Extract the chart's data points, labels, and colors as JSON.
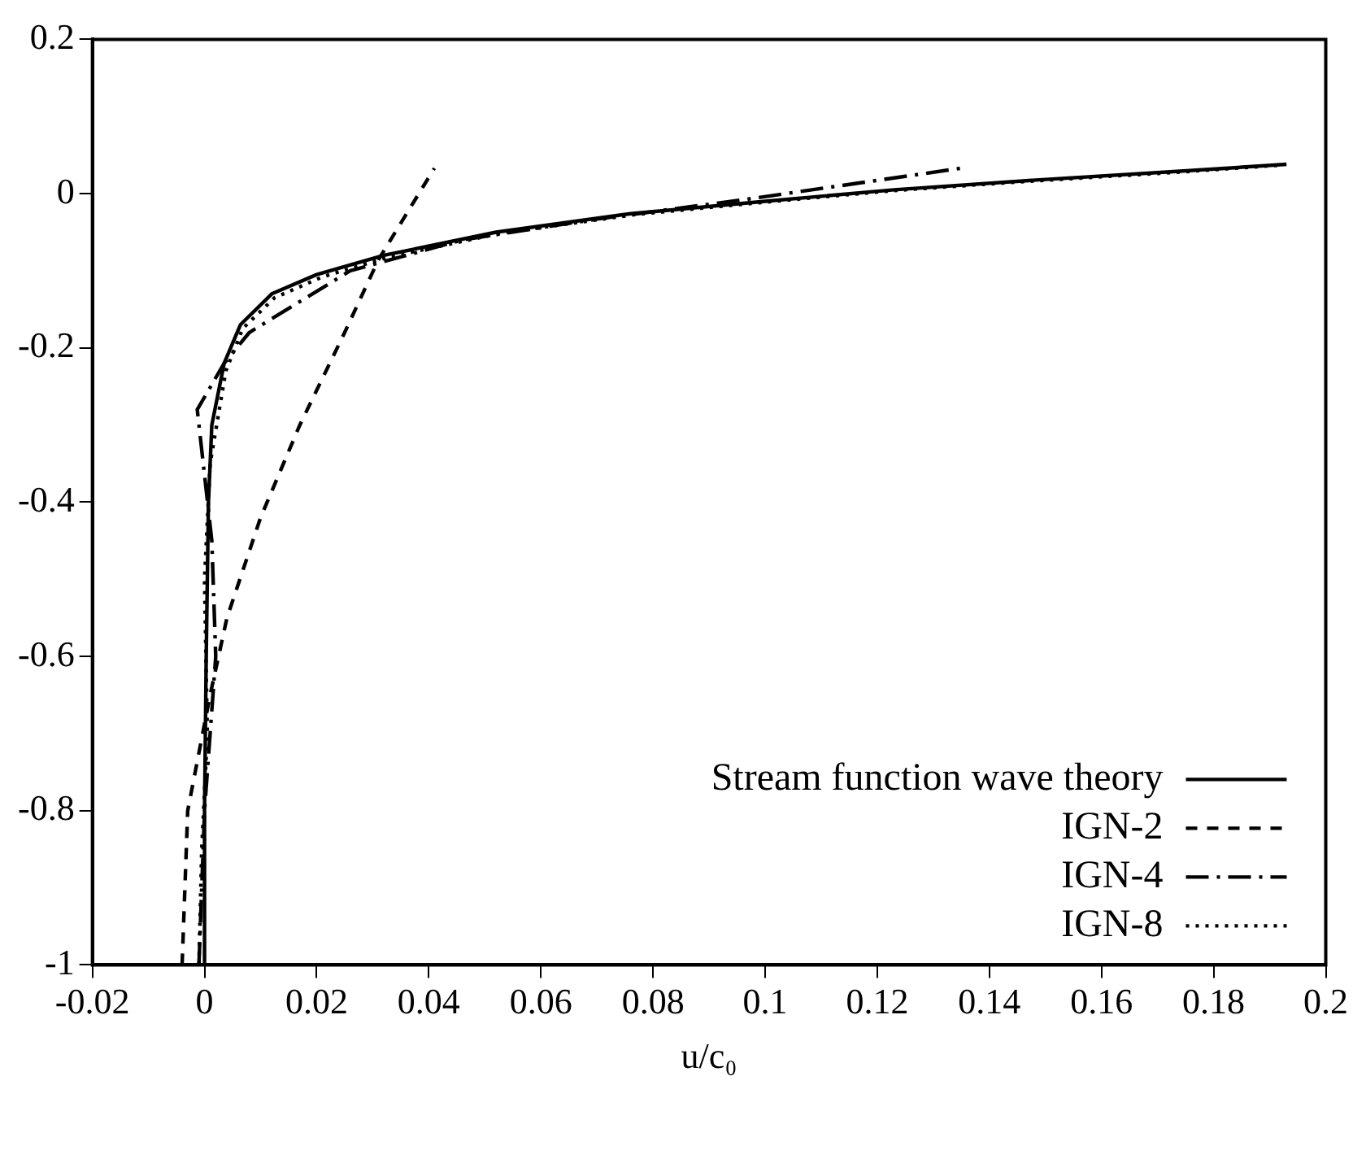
{
  "chart_data": {
    "type": "line",
    "xlabel": "u/c₀",
    "xlim": [
      -0.02,
      0.2
    ],
    "xticks": [
      -0.02,
      0,
      0.02,
      0.04,
      0.06,
      0.08,
      0.1,
      0.12,
      0.14,
      0.16,
      0.18,
      0.2
    ],
    "ylim": [
      -1,
      0.2
    ],
    "yticks": [
      -1,
      -0.8,
      -0.6,
      -0.4,
      -0.2,
      0,
      0.2
    ],
    "grid": false,
    "legend": "bottom right",
    "marker": "none",
    "series": [
      {
        "name": "Stream function wave theory",
        "color": "#000000",
        "line_style": "solid",
        "x": [
          0,
          0,
          0.0003,
          0.0007,
          0.0013,
          0.0035,
          0.0064,
          0.012,
          0.02,
          0.032,
          0.052,
          0.076,
          0.1,
          0.123,
          0.147,
          0.174,
          0.193
        ],
        "values": [
          -1,
          -0.8,
          -0.6,
          -0.4,
          -0.3,
          -0.22,
          -0.17,
          -0.13,
          -0.105,
          -0.08,
          -0.05,
          -0.026,
          -0.01,
          0.005,
          0.017,
          0.029,
          0.038
        ]
      },
      {
        "name": "IGN-2",
        "color": "#000000",
        "line_style": "dashed",
        "x": [
          -0.004,
          -0.003,
          0.001,
          0.004,
          0.01,
          0.017,
          0.025,
          0.031,
          0.041
        ],
        "values": [
          -1,
          -0.8,
          -0.65,
          -0.55,
          -0.42,
          -0.3,
          -0.18,
          -0.086,
          0.033
        ]
      },
      {
        "name": "IGN-4",
        "color": "#000000",
        "line_style": "dashdot",
        "x": [
          -0.001,
          0,
          0.002,
          0.0013,
          -0.0013,
          0.0035,
          0.008,
          0.026,
          0.046,
          0.07,
          0.097,
          0.117,
          0.135
        ],
        "values": [
          -1,
          -0.8,
          -0.6,
          -0.45,
          -0.28,
          -0.22,
          -0.18,
          -0.1,
          -0.06,
          -0.033,
          -0.007,
          0.014,
          0.033
        ]
      },
      {
        "name": "IGN-8",
        "color": "#000000",
        "line_style": "dotted",
        "x": [
          -0.001,
          -0.0005,
          0.0005,
          0,
          0.001,
          0.0038,
          0.0068,
          0.0125,
          0.021,
          0.033,
          0.053,
          0.077,
          0.1,
          0.123,
          0.147,
          0.174,
          0.192
        ],
        "values": [
          -1,
          -0.85,
          -0.7,
          -0.5,
          -0.35,
          -0.23,
          -0.175,
          -0.135,
          -0.108,
          -0.082,
          -0.051,
          -0.027,
          -0.011,
          0.004,
          0.016,
          0.028,
          0.037
        ]
      }
    ]
  }
}
